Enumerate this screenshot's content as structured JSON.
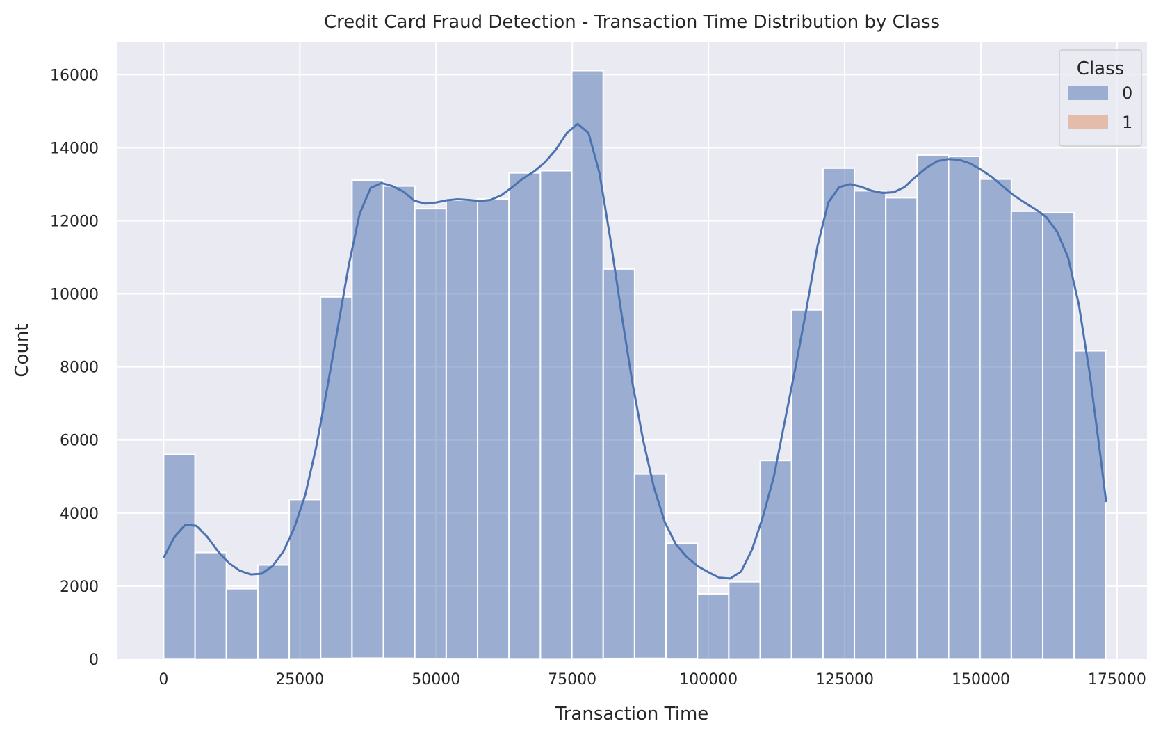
{
  "chart_data": {
    "type": "bar",
    "title": "Credit Card Fraud Detection - Transaction Time Distribution by Class",
    "xlabel": "Transaction Time",
    "ylabel": "Count",
    "xlim": [
      -8600,
      180500
    ],
    "ylim": [
      0,
      16900
    ],
    "xticks": [
      0,
      25000,
      50000,
      75000,
      100000,
      125000,
      150000,
      175000
    ],
    "xtick_labels": [
      "0",
      "25000",
      "50000",
      "75000",
      "100000",
      "125000",
      "150000",
      "175000"
    ],
    "yticks": [
      0,
      2000,
      4000,
      6000,
      8000,
      10000,
      12000,
      14000,
      16000
    ],
    "ytick_labels": [
      "0",
      "2000",
      "4000",
      "6000",
      "8000",
      "10000",
      "12000",
      "14000",
      "16000"
    ],
    "grid": true,
    "bin_start": 0,
    "bin_width": 5763,
    "legend": {
      "title": "Class",
      "position": "top-right",
      "entries": [
        "0",
        "1"
      ]
    },
    "series": [
      {
        "name": "0",
        "color": "#4c72b0",
        "values": [
          5600,
          2920,
          1930,
          2580,
          4370,
          9920,
          13110,
          12950,
          12330,
          12560,
          12600,
          13310,
          13370,
          16110,
          10680,
          5070,
          3170,
          1790,
          2120,
          5440,
          9560,
          13440,
          12820,
          12630,
          13800,
          13760,
          13140,
          12260,
          12220,
          8440
        ]
      },
      {
        "name": "1",
        "color": "#dd8452",
        "values": [
          14,
          6,
          5,
          6,
          8,
          22,
          30,
          25,
          18,
          16,
          14,
          12,
          10,
          12,
          20,
          24,
          16,
          6,
          8,
          12,
          14,
          12,
          10,
          10,
          12,
          12,
          10,
          10,
          8,
          6
        ]
      }
    ],
    "kde_0": {
      "x": [
        0,
        2000,
        4000,
        6000,
        8000,
        10000,
        12000,
        14000,
        16000,
        18000,
        20000,
        22000,
        24000,
        26000,
        28000,
        30000,
        32000,
        34000,
        36000,
        38000,
        40000,
        42000,
        44000,
        46000,
        48000,
        50000,
        52000,
        54000,
        56000,
        58000,
        60000,
        62000,
        64000,
        66000,
        68000,
        70000,
        72000,
        74000,
        76000,
        78000,
        80000,
        82000,
        84000,
        86000,
        88000,
        90000,
        92000,
        94000,
        96000,
        98000,
        100000,
        102000,
        104000,
        106000,
        108000,
        110000,
        112000,
        114000,
        116000,
        118000,
        120000,
        122000,
        124000,
        126000,
        128000,
        130000,
        132000,
        134000,
        136000,
        138000,
        140000,
        142000,
        144000,
        146000,
        148000,
        150000,
        152000,
        154000,
        156000,
        158000,
        160000,
        162000,
        164000,
        166000,
        168000,
        170000,
        172000,
        173000
      ],
      "y": [
        2780,
        3350,
        3680,
        3650,
        3350,
        2950,
        2630,
        2420,
        2320,
        2340,
        2550,
        2950,
        3600,
        4500,
        5800,
        7400,
        9100,
        10800,
        12200,
        12900,
        13030,
        12950,
        12800,
        12550,
        12470,
        12500,
        12560,
        12590,
        12570,
        12540,
        12570,
        12700,
        12920,
        13160,
        13350,
        13600,
        13950,
        14400,
        14650,
        14400,
        13300,
        11500,
        9500,
        7600,
        6000,
        4700,
        3750,
        3150,
        2800,
        2550,
        2380,
        2230,
        2210,
        2400,
        3000,
        3900,
        5000,
        6500,
        8000,
        9600,
        11300,
        12500,
        12920,
        13000,
        12930,
        12820,
        12760,
        12780,
        12920,
        13200,
        13450,
        13630,
        13690,
        13670,
        13570,
        13400,
        13200,
        12950,
        12700,
        12500,
        12320,
        12100,
        11700,
        11000,
        9700,
        7800,
        5500,
        4300
      ]
    }
  }
}
